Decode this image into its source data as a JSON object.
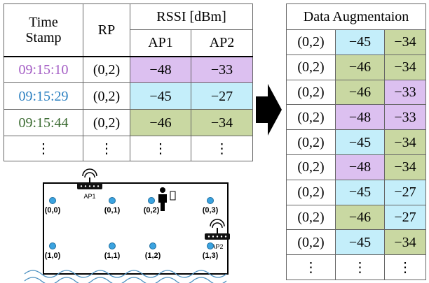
{
  "left_table": {
    "header": {
      "time_stamp": "Time Stamp",
      "rp": "RP",
      "rssi": "RSSI [dBm]",
      "ap1": "AP1",
      "ap2": "AP2"
    },
    "rows": [
      {
        "cells": [
          "09:15:10",
          "(0,2)",
          "−48",
          "−33"
        ],
        "time_color": "#a35cc4",
        "colors": [
          "#dcc0f0",
          "#dcc0f0"
        ]
      },
      {
        "cells": [
          "09:15:29",
          "(0,2)",
          "−45",
          "−27"
        ],
        "time_color": "#2a7fc0",
        "colors": [
          "#c4eefa",
          "#c4eefa"
        ]
      },
      {
        "cells": [
          "09:15:44",
          "(0,2)",
          "−46",
          "−34"
        ],
        "time_color": "#3a6a30",
        "colors": [
          "#c9d8a2",
          "#c9d8a2"
        ]
      },
      {
        "cells": [
          "⋮",
          "⋮",
          "⋮",
          "⋮"
        ]
      }
    ]
  },
  "right_table": {
    "title": "Data Augmentaion",
    "rows": [
      {
        "cells": [
          "(0,2)",
          "−45",
          "−34"
        ],
        "colors": [
          "#c4eefa",
          "#c9d8a2"
        ]
      },
      {
        "cells": [
          "(0,2)",
          "−46",
          "−34"
        ],
        "colors": [
          "#c9d8a2",
          "#c9d8a2"
        ]
      },
      {
        "cells": [
          "(0,2)",
          "−46",
          "−33"
        ],
        "colors": [
          "#c9d8a2",
          "#dcc0f0"
        ]
      },
      {
        "cells": [
          "(0,2)",
          "−48",
          "−33"
        ],
        "colors": [
          "#dcc0f0",
          "#dcc0f0"
        ]
      },
      {
        "cells": [
          "(0,2)",
          "−45",
          "−34"
        ],
        "colors": [
          "#c4eefa",
          "#c9d8a2"
        ]
      },
      {
        "cells": [
          "(0,2)",
          "−48",
          "−34"
        ],
        "colors": [
          "#dcc0f0",
          "#c9d8a2"
        ]
      },
      {
        "cells": [
          "(0,2)",
          "−45",
          "−27"
        ],
        "colors": [
          "#c4eefa",
          "#c4eefa"
        ]
      },
      {
        "cells": [
          "(0,2)",
          "−46",
          "−27"
        ],
        "colors": [
          "#c9d8a2",
          "#c4eefa"
        ]
      },
      {
        "cells": [
          "(0,2)",
          "−45",
          "−34"
        ],
        "colors": [
          "#c4eefa",
          "#c9d8a2"
        ]
      },
      {
        "cells": [
          "⋮",
          "⋮",
          "⋮"
        ]
      }
    ]
  },
  "map": {
    "access_points": [
      "AP1",
      "AP2"
    ],
    "points": [
      "(0,0)",
      "(0,1)",
      "(0,2)",
      "(0,3)",
      "(1,0)",
      "(1,1)",
      "(1,2)",
      "(1,3)"
    ]
  }
}
